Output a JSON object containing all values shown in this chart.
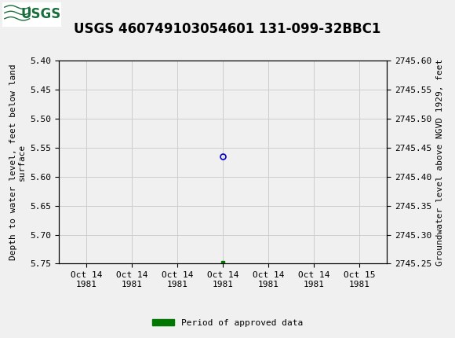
{
  "title": "USGS 460749103054601 131-099-32BBC1",
  "ylabel_left": "Depth to water level, feet below land\nsurface",
  "ylabel_right": "Groundwater level above NGVD 1929, feet",
  "ylim_left": [
    5.4,
    5.75
  ],
  "ylim_right": [
    2745.6,
    2745.25
  ],
  "yticks_left": [
    5.4,
    5.45,
    5.5,
    5.55,
    5.6,
    5.65,
    5.7,
    5.75
  ],
  "yticks_right": [
    2745.6,
    2745.55,
    2745.5,
    2745.45,
    2745.4,
    2745.35,
    2745.3,
    2745.25
  ],
  "xtick_labels": [
    "Oct 14\n1981",
    "Oct 14\n1981",
    "Oct 14\n1981",
    "Oct 14\n1981",
    "Oct 14\n1981",
    "Oct 14\n1981",
    "Oct 15\n1981"
  ],
  "data_point_x": 3.0,
  "data_point_y": 5.565,
  "data_point_color": "#0000cc",
  "data_point_marker_size": 5,
  "green_square_x": 3.0,
  "green_square_y": 5.748,
  "green_square_color": "#007700",
  "background_color": "#f0f0f0",
  "plot_bg_color": "#f0f0f0",
  "header_color": "#1a6e3b",
  "grid_color": "#cccccc",
  "legend_label": "Period of approved data",
  "legend_color": "#007700",
  "title_fontsize": 12,
  "axis_label_fontsize": 8,
  "tick_fontsize": 8,
  "xlim": [
    0,
    6
  ]
}
